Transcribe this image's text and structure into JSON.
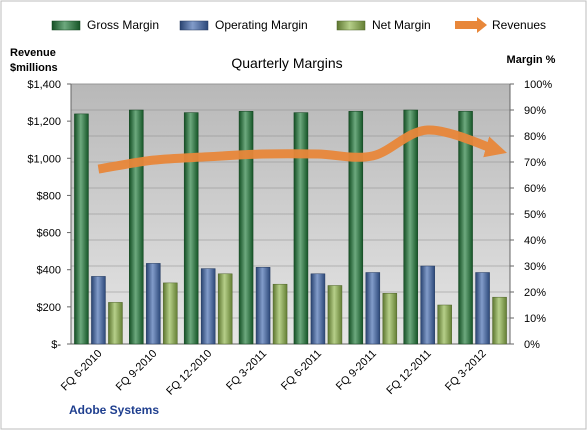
{
  "colors": {
    "gross_margin": "#1e7a38",
    "operating_margin": "#3f67ad",
    "net_margin": "#8fb54a",
    "revenues": "#e8873a",
    "plot_bg": "#c8c8c8",
    "page_bg": "#ffffff"
  },
  "legend": {
    "items": [
      {
        "label": "Gross Margin",
        "key": "gross_margin",
        "type": "bar"
      },
      {
        "label": "Operating Margin",
        "key": "operating_margin",
        "type": "bar"
      },
      {
        "label": "Net Margin",
        "key": "net_margin",
        "type": "bar"
      },
      {
        "label": "Revenues",
        "key": "revenues",
        "type": "arrow"
      }
    ]
  },
  "chart_data": {
    "type": "bar",
    "title": "Quarterly Margins",
    "company": "Adobe Systems",
    "left_axis_title": [
      "Revenue",
      "$millions"
    ],
    "right_axis_title": "Margin %",
    "categories": [
      "FQ 6-2010",
      "FQ 9-2010",
      "FQ 12-2010",
      "FQ 3-2011",
      "FQ 6-2011",
      "FQ 9-2011",
      "FQ 12-2011",
      "FQ 3-2012"
    ],
    "left_ticks": [
      "$-",
      "$200",
      "$400",
      "$600",
      "$800",
      "$1,000",
      "$1,200",
      "$1,400"
    ],
    "right_ticks": [
      "0%",
      "10%",
      "20%",
      "30%",
      "40%",
      "50%",
      "60%",
      "70%",
      "80%",
      "90%",
      "100%"
    ],
    "left_ylim": [
      0,
      1400
    ],
    "right_ylim": [
      0,
      100
    ],
    "series": [
      {
        "name": "Gross Margin",
        "key": "gross_margin",
        "axis": "right",
        "values": [
          88.5,
          90,
          89,
          89.5,
          89,
          89.5,
          90,
          89.5
        ]
      },
      {
        "name": "Operating Margin",
        "key": "operating_margin",
        "axis": "right",
        "values": [
          26,
          31,
          29,
          29.5,
          27,
          27.5,
          30,
          27.5
        ]
      },
      {
        "name": "Net Margin",
        "key": "net_margin",
        "axis": "right",
        "values": [
          16,
          23.5,
          27,
          23,
          22.5,
          19.5,
          15,
          18
        ]
      },
      {
        "name": "Revenues",
        "key": "revenues",
        "axis": "left",
        "type": "line",
        "values": [
          942,
          990,
          1008,
          1023,
          1023,
          1013,
          1152,
          1045
        ]
      }
    ],
    "grid": true,
    "legend_position": "top"
  }
}
